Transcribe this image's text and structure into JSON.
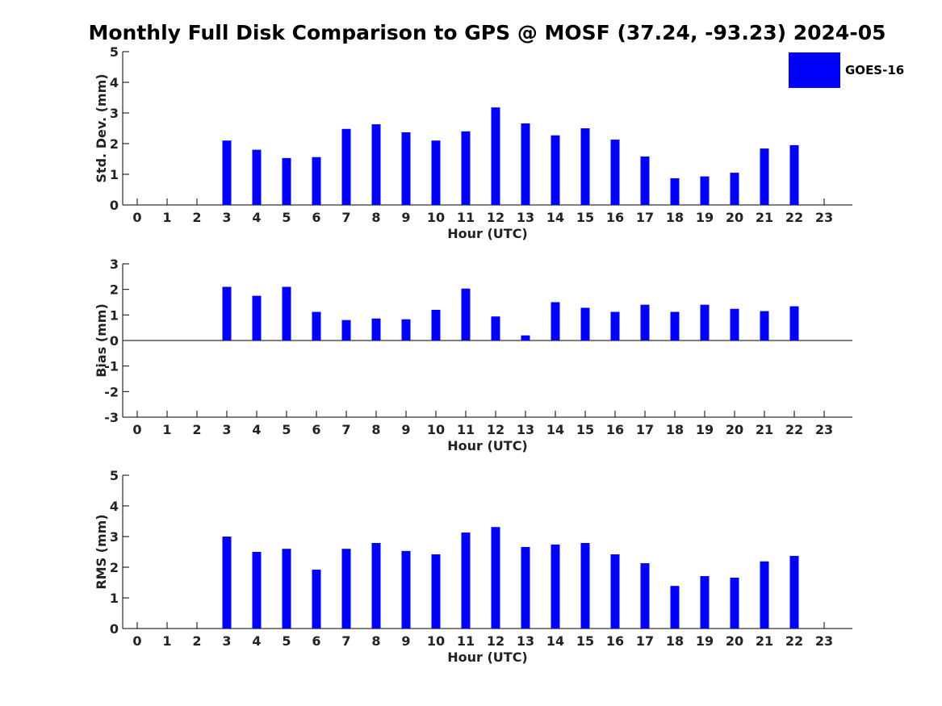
{
  "title": "Monthly Full Disk Comparison to GPS @ MOSF (37.24, -93.23) 2024-05",
  "legend": {
    "label": "GOES-16",
    "color": "#0000ff"
  },
  "chart_data": [
    {
      "type": "bar",
      "ylabel": "Std. Dev. (mm)",
      "xlabel": "Hour (UTC)",
      "ylim": [
        0,
        5
      ],
      "yticks": [
        "0",
        "1",
        "2",
        "3",
        "4",
        "5"
      ],
      "categories": [
        "0",
        "1",
        "2",
        "3",
        "4",
        "5",
        "6",
        "7",
        "8",
        "9",
        "10",
        "11",
        "12",
        "13",
        "14",
        "15",
        "16",
        "17",
        "18",
        "19",
        "20",
        "21",
        "22",
        "23"
      ],
      "series": [
        {
          "name": "GOES-16",
          "values": [
            null,
            null,
            null,
            2.1,
            1.8,
            1.53,
            1.56,
            2.48,
            2.63,
            2.37,
            2.1,
            2.4,
            3.18,
            2.66,
            2.27,
            2.5,
            2.13,
            1.58,
            0.87,
            0.93,
            1.05,
            1.84,
            1.95,
            null
          ]
        }
      ]
    },
    {
      "type": "bar",
      "ylabel": "Bias (mm)",
      "xlabel": "Hour (UTC)",
      "ylim": [
        -3,
        3
      ],
      "yticks": [
        "-3",
        "-2",
        "-1",
        "0",
        "1",
        "2",
        "3"
      ],
      "categories": [
        "0",
        "1",
        "2",
        "3",
        "4",
        "5",
        "6",
        "7",
        "8",
        "9",
        "10",
        "11",
        "12",
        "13",
        "14",
        "15",
        "16",
        "17",
        "18",
        "19",
        "20",
        "21",
        "22",
        "23"
      ],
      "series": [
        {
          "name": "GOES-16",
          "values": [
            null,
            null,
            null,
            2.1,
            1.75,
            2.1,
            1.12,
            0.8,
            0.86,
            0.83,
            1.2,
            2.03,
            0.94,
            0.2,
            1.5,
            1.28,
            1.12,
            1.4,
            1.12,
            1.4,
            1.24,
            1.15,
            1.34,
            null
          ]
        }
      ]
    },
    {
      "type": "bar",
      "ylabel": "RMS (mm)",
      "xlabel": "Hour (UTC)",
      "ylim": [
        0,
        5
      ],
      "yticks": [
        "0",
        "1",
        "2",
        "3",
        "4",
        "5"
      ],
      "categories": [
        "0",
        "1",
        "2",
        "3",
        "4",
        "5",
        "6",
        "7",
        "8",
        "9",
        "10",
        "11",
        "12",
        "13",
        "14",
        "15",
        "16",
        "17",
        "18",
        "19",
        "20",
        "21",
        "22",
        "23"
      ],
      "series": [
        {
          "name": "GOES-16",
          "values": [
            null,
            null,
            null,
            3.0,
            2.5,
            2.6,
            1.92,
            2.6,
            2.79,
            2.53,
            2.42,
            3.13,
            3.31,
            2.66,
            2.74,
            2.79,
            2.42,
            2.13,
            1.39,
            1.71,
            1.66,
            2.19,
            2.37,
            null
          ]
        }
      ]
    }
  ]
}
